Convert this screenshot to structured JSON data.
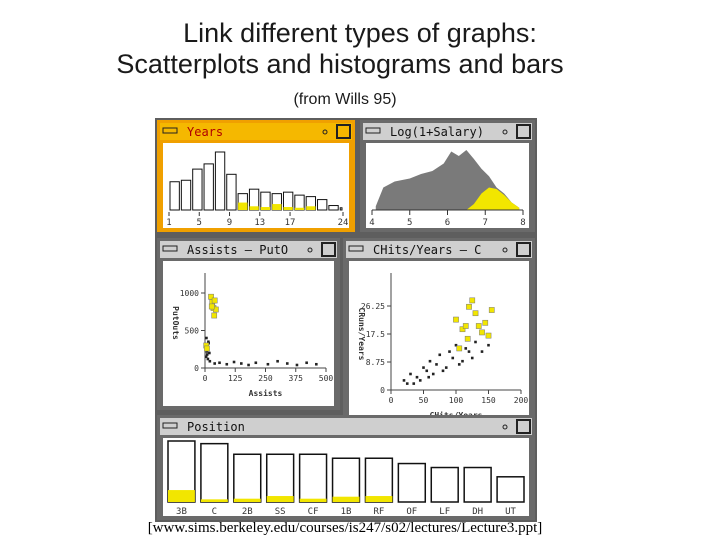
{
  "header": {
    "title_line1": "Link different types of graphs:",
    "title_line2": "Scatterplots and histograms and bars",
    "subtitle": "(from Wills 95)"
  },
  "years": {
    "title": "Years",
    "type": "histogram",
    "xlim": [
      1,
      24
    ],
    "xticks": [
      1,
      5,
      9,
      13,
      17,
      24
    ],
    "bins": [
      1,
      2.5,
      4,
      5.5,
      7,
      8.5,
      10,
      11.5,
      13,
      14.5,
      16,
      17.5,
      19,
      20.5,
      22,
      23.5,
      24
    ],
    "counts": [
      38,
      40,
      55,
      62,
      78,
      48,
      22,
      28,
      24,
      22,
      24,
      20,
      18,
      14,
      6,
      3
    ],
    "highlight": [
      0,
      0,
      0,
      0,
      0,
      0,
      10,
      5,
      4,
      8,
      4,
      3,
      5,
      0,
      0,
      0
    ]
  },
  "salary": {
    "title": "Log(1+Salary)",
    "type": "area",
    "xlim": [
      4,
      8
    ],
    "xticks": [
      4,
      5,
      6,
      7,
      8
    ],
    "x": [
      4.1,
      4.3,
      4.6,
      5.0,
      5.3,
      5.6,
      5.9,
      6.1,
      6.3,
      6.5,
      6.7,
      6.9,
      7.1,
      7.3,
      7.5,
      7.7,
      7.9
    ],
    "values": [
      5,
      30,
      38,
      42,
      48,
      52,
      62,
      78,
      72,
      80,
      68,
      55,
      45,
      30,
      22,
      10,
      3
    ],
    "highlight": [
      0,
      0,
      0,
      0,
      0,
      0,
      0,
      0,
      0,
      0,
      8,
      22,
      30,
      28,
      20,
      10,
      3
    ]
  },
  "assists": {
    "title": "Assists  – PutO",
    "type": "scatter",
    "xlabel": "Assists",
    "ylabel": "PutOuts",
    "xlim": [
      0,
      500
    ],
    "xticks": [
      0,
      125,
      250,
      375,
      500
    ],
    "ylim": [
      0,
      1200
    ],
    "yticks": [
      0,
      500,
      1000
    ],
    "points": {
      "x": [
        5,
        8,
        10,
        12,
        15,
        6,
        9,
        20,
        40,
        60,
        90,
        120,
        150,
        180,
        210,
        260,
        300,
        340,
        380,
        420,
        460,
        10,
        14,
        18
      ],
      "y": [
        150,
        220,
        280,
        120,
        330,
        400,
        180,
        90,
        60,
        70,
        50,
        80,
        60,
        40,
        70,
        50,
        90,
        60,
        40,
        70,
        50,
        260,
        350,
        200
      ]
    },
    "selected": {
      "x": [
        25,
        30,
        40,
        35,
        45,
        28,
        38,
        5,
        8
      ],
      "y": [
        950,
        880,
        900,
        800,
        780,
        820,
        700,
        300,
        260
      ]
    }
  },
  "chits": {
    "title": "CHits/Years  – C",
    "type": "scatter",
    "xlabel": "CHits/Years",
    "ylabel": "CRuns/Years",
    "xlim": [
      0,
      200
    ],
    "xticks": [
      0,
      50,
      100,
      150,
      200
    ],
    "ylim": [
      0,
      35
    ],
    "yticks": [
      0,
      8.75,
      17.5,
      26.25
    ],
    "points": {
      "x": [
        20,
        30,
        40,
        50,
        55,
        60,
        70,
        75,
        80,
        90,
        95,
        100,
        110,
        115,
        120,
        130,
        35,
        45,
        65,
        85,
        105,
        125,
        140,
        150,
        25,
        58
      ],
      "y": [
        3,
        5,
        4,
        7,
        6,
        9,
        8,
        11,
        6,
        12,
        10,
        14,
        9,
        13,
        12,
        15,
        2,
        3,
        5,
        7,
        8,
        10,
        12,
        14,
        2,
        4
      ]
    },
    "selected": {
      "x": [
        100,
        110,
        115,
        120,
        130,
        135,
        140,
        145,
        125,
        150,
        155,
        105,
        118
      ],
      "y": [
        22,
        19,
        20,
        26,
        24,
        20,
        18,
        21,
        28,
        17,
        25,
        13,
        16
      ]
    }
  },
  "position": {
    "title": "Position",
    "type": "bar",
    "categories": [
      "3B",
      "C",
      "2B",
      "SS",
      "CF",
      "1B",
      "RF",
      "OF",
      "LF",
      "DH",
      "UT"
    ],
    "values": [
      92,
      88,
      72,
      72,
      72,
      66,
      66,
      58,
      52,
      52,
      38
    ],
    "highlight": [
      18,
      4,
      5,
      9,
      5,
      8,
      9,
      0,
      0,
      0,
      0
    ]
  },
  "footer": {
    "source": "[www.sims.berkeley.edu/courses/is247/s02/lectures/Lecture3.ppt]"
  }
}
